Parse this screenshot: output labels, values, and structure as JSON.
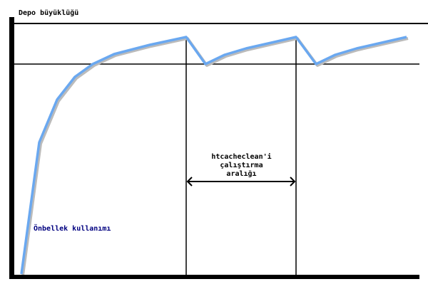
{
  "labels": {
    "y_axis": "Depo büyüklüğü",
    "interval_line1": "htcacheclean'i",
    "interval_line2": "çalıştırma",
    "interval_line3": "aralığı",
    "curve": "Önbellek kullanımı"
  },
  "colors": {
    "curve": "#6aa8f0",
    "curve_label": "#000080",
    "lines": "#000000"
  }
}
